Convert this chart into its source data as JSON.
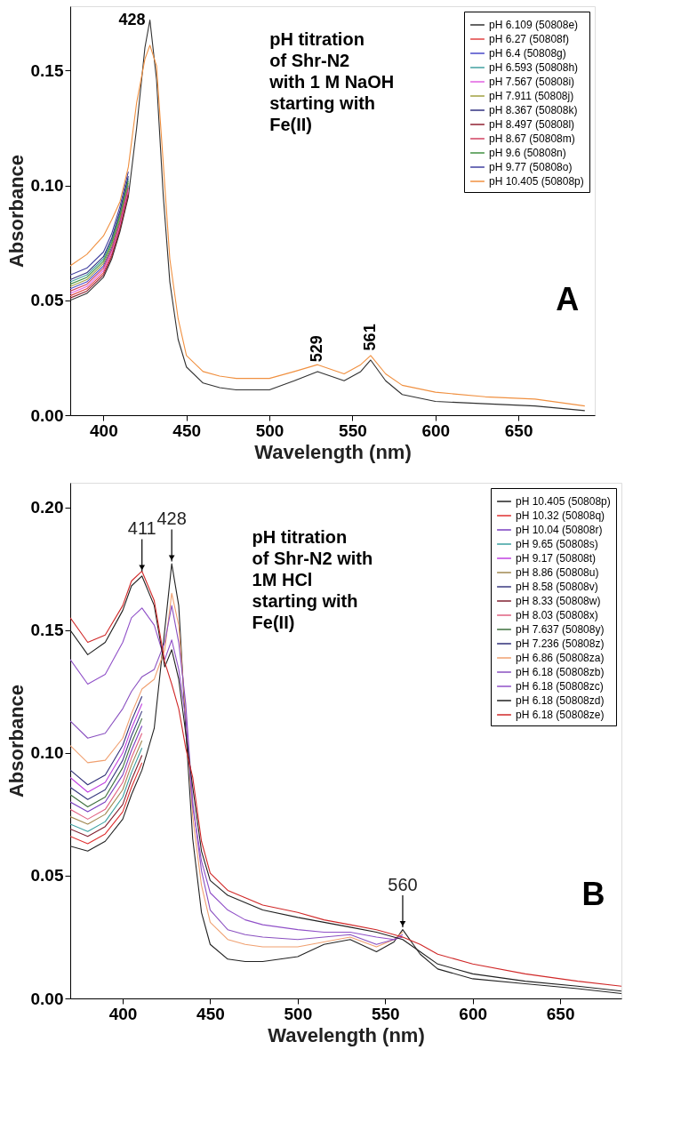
{
  "chart_data": [
    {
      "type": "line",
      "xlabel": "Wavelength (nm)",
      "ylabel": "Absorbance",
      "xlim": [
        380,
        696
      ],
      "ylim": [
        0,
        0.178
      ],
      "xticks": [
        400,
        450,
        500,
        550,
        600,
        650
      ],
      "yticks": [
        {
          "value": 0,
          "label": "0.00"
        },
        {
          "value": 0.05,
          "label": "0.05"
        },
        {
          "value": 0.1,
          "label": "0.10"
        },
        {
          "value": 0.15,
          "label": "0.15"
        }
      ],
      "grid": false,
      "legend": "top right",
      "x": [
        380,
        390,
        400,
        405,
        410,
        415,
        420,
        425,
        428,
        432,
        436,
        440,
        445,
        450,
        460,
        470,
        480,
        500,
        515,
        529,
        545,
        555,
        561,
        570,
        580,
        600,
        630,
        660,
        690
      ],
      "series": [
        {
          "name": "pH 6.109 (50808e)",
          "color": "#303030",
          "values": [
            0.05,
            0.053,
            0.06,
            0.068,
            0.08,
            0.095,
            0.125,
            0.16,
            0.172,
            0.146,
            0.096,
            0.058,
            0.033,
            0.021,
            0.014,
            0.012,
            0.011,
            0.011,
            0.015,
            0.019,
            0.015,
            0.019,
            0.024,
            0.015,
            0.009,
            0.006,
            0.005,
            0.004,
            0.002
          ]
        },
        {
          "name": "pH 6.27 (50808f)",
          "color": "#e04040",
          "values": [
            0.052,
            0.055,
            0.062,
            0.07,
            0.082,
            0.097,
            null,
            null,
            null,
            null,
            null,
            null,
            null,
            null,
            null,
            null,
            null,
            null,
            null,
            null,
            null,
            null,
            null,
            null,
            null,
            null,
            null,
            null,
            null
          ]
        },
        {
          "name": "pH 6.4 (50808g)",
          "color": "#4848c8",
          "values": [
            0.055,
            0.058,
            0.065,
            0.073,
            0.085,
            0.1,
            null,
            null,
            null,
            null,
            null,
            null,
            null,
            null,
            null,
            null,
            null,
            null,
            null,
            null,
            null,
            null,
            null,
            null,
            null,
            null,
            null,
            null,
            null
          ]
        },
        {
          "name": "pH 6.593 (50808h)",
          "color": "#40a0a0",
          "values": [
            0.058,
            0.061,
            0.068,
            0.076,
            0.088,
            0.103,
            null,
            null,
            null,
            null,
            null,
            null,
            null,
            null,
            null,
            null,
            null,
            null,
            null,
            null,
            null,
            null,
            null,
            null,
            null,
            null,
            null,
            null,
            null
          ]
        },
        {
          "name": "pH 7.567 (50808i)",
          "color": "#e060e0",
          "values": [
            0.053,
            0.056,
            0.063,
            0.071,
            0.083,
            0.098,
            null,
            null,
            null,
            null,
            null,
            null,
            null,
            null,
            null,
            null,
            null,
            null,
            null,
            null,
            null,
            null,
            null,
            null,
            null,
            null,
            null,
            null,
            null
          ]
        },
        {
          "name": "pH 7.911 (50808j)",
          "color": "#a0a040",
          "values": [
            0.056,
            0.059,
            0.066,
            0.074,
            0.086,
            0.101,
            null,
            null,
            null,
            null,
            null,
            null,
            null,
            null,
            null,
            null,
            null,
            null,
            null,
            null,
            null,
            null,
            null,
            null,
            null,
            null,
            null,
            null,
            null
          ]
        },
        {
          "name": "pH 8.367 (50808k)",
          "color": "#303080",
          "values": [
            0.059,
            0.062,
            0.069,
            0.077,
            0.089,
            0.104,
            null,
            null,
            null,
            null,
            null,
            null,
            null,
            null,
            null,
            null,
            null,
            null,
            null,
            null,
            null,
            null,
            null,
            null,
            null,
            null,
            null,
            null,
            null
          ]
        },
        {
          "name": "pH 8.497 (50808l)",
          "color": "#902030",
          "values": [
            0.051,
            0.054,
            0.061,
            0.069,
            0.081,
            0.096,
            null,
            null,
            null,
            null,
            null,
            null,
            null,
            null,
            null,
            null,
            null,
            null,
            null,
            null,
            null,
            null,
            null,
            null,
            null,
            null,
            null,
            null,
            null
          ]
        },
        {
          "name": "pH 8.67 (50808m)",
          "color": "#d04060",
          "values": [
            0.054,
            0.057,
            0.064,
            0.072,
            0.084,
            0.099,
            null,
            null,
            null,
            null,
            null,
            null,
            null,
            null,
            null,
            null,
            null,
            null,
            null,
            null,
            null,
            null,
            null,
            null,
            null,
            null,
            null,
            null,
            null
          ]
        },
        {
          "name": "pH 9.6 (50808n)",
          "color": "#409040",
          "values": [
            0.057,
            0.06,
            0.067,
            0.075,
            0.087,
            0.102,
            null,
            null,
            null,
            null,
            null,
            null,
            null,
            null,
            null,
            null,
            null,
            null,
            null,
            null,
            null,
            null,
            null,
            null,
            null,
            null,
            null,
            null,
            null
          ]
        },
        {
          "name": "pH 9.77 (50808o)",
          "color": "#4040a0",
          "values": [
            0.061,
            0.064,
            0.071,
            0.079,
            0.091,
            0.106,
            null,
            null,
            null,
            null,
            null,
            null,
            null,
            null,
            null,
            null,
            null,
            null,
            null,
            null,
            null,
            null,
            null,
            null,
            null,
            null,
            null,
            null,
            null
          ]
        },
        {
          "name": "pH 10.405 (50808p)",
          "color": "#f09040",
          "values": [
            0.065,
            0.07,
            0.078,
            0.085,
            0.093,
            0.108,
            0.136,
            0.155,
            0.161,
            0.152,
            0.11,
            0.068,
            0.042,
            0.026,
            0.019,
            0.017,
            0.016,
            0.016,
            0.019,
            0.022,
            0.018,
            0.022,
            0.026,
            0.018,
            0.013,
            0.01,
            0.008,
            0.007,
            0.004
          ]
        }
      ],
      "annotations": [
        "pH titration\nof Shr-N2\nwith 1 M NaOH\nstarting with\nFe(II)",
        "A",
        {
          "text": "428",
          "x": 428,
          "y": 0.172
        },
        {
          "text": "529",
          "x": 529,
          "y": 0.02
        },
        {
          "text": "561",
          "x": 561,
          "y": 0.025
        }
      ]
    },
    {
      "type": "line",
      "xlabel": "Wavelength (nm)",
      "ylabel": "Absorbance",
      "xlim": [
        370,
        685
      ],
      "ylim": [
        0,
        0.21
      ],
      "xticks": [
        400,
        450,
        500,
        550,
        600,
        650
      ],
      "yticks": [
        {
          "value": 0,
          "label": "0.00"
        },
        {
          "value": 0.05,
          "label": "0.05"
        },
        {
          "value": 0.1,
          "label": "0.10"
        },
        {
          "value": 0.15,
          "label": "0.15"
        },
        {
          "value": 0.2,
          "label": "0.20"
        }
      ],
      "grid": false,
      "legend": "top right",
      "x": [
        370,
        380,
        390,
        400,
        405,
        411,
        418,
        424,
        428,
        432,
        436,
        440,
        445,
        450,
        460,
        470,
        480,
        500,
        515,
        530,
        545,
        555,
        560,
        570,
        580,
        600,
        630,
        660,
        685
      ],
      "series": [
        {
          "name": "pH 10.405 (50808p)",
          "color": "#222222",
          "values": [
            0.062,
            0.06,
            0.064,
            0.073,
            0.083,
            0.093,
            0.11,
            0.15,
            0.177,
            0.16,
            0.11,
            0.065,
            0.035,
            0.022,
            0.016,
            0.015,
            0.015,
            0.017,
            0.022,
            0.024,
            0.019,
            0.023,
            0.028,
            0.018,
            0.012,
            0.008,
            0.006,
            0.004,
            0.002
          ]
        },
        {
          "name": "pH 10.32 (50808q)",
          "color": "#e03030",
          "values": [
            0.066,
            0.063,
            0.067,
            0.076,
            0.086,
            0.096,
            null,
            null,
            null,
            null,
            null,
            null,
            null,
            null,
            null,
            null,
            null,
            null,
            null,
            null,
            null,
            null,
            null,
            null,
            null,
            null,
            null,
            null,
            null
          ]
        },
        {
          "name": "pH 10.04 (50808r)",
          "color": "#7a3fc0",
          "values": [
            0.08,
            0.076,
            0.08,
            0.091,
            0.101,
            0.111,
            null,
            null,
            null,
            null,
            null,
            null,
            null,
            null,
            null,
            null,
            null,
            null,
            null,
            null,
            null,
            null,
            null,
            null,
            null,
            null,
            null,
            null,
            null
          ]
        },
        {
          "name": "pH 9.65 (50808s)",
          "color": "#3aa0a0",
          "values": [
            0.071,
            0.068,
            0.072,
            0.082,
            0.092,
            0.102,
            null,
            null,
            null,
            null,
            null,
            null,
            null,
            null,
            null,
            null,
            null,
            null,
            null,
            null,
            null,
            null,
            null,
            null,
            null,
            null,
            null,
            null,
            null
          ]
        },
        {
          "name": "pH 9.17 (50808t)",
          "color": "#c040e0",
          "values": [
            0.09,
            0.084,
            0.088,
            0.1,
            0.11,
            0.12,
            null,
            null,
            null,
            null,
            null,
            null,
            null,
            null,
            null,
            null,
            null,
            null,
            null,
            null,
            null,
            null,
            null,
            null,
            null,
            null,
            null,
            null,
            null
          ]
        },
        {
          "name": "pH 8.86 (50808u)",
          "color": "#a08850",
          "values": [
            0.074,
            0.071,
            0.075,
            0.085,
            0.095,
            0.105,
            null,
            null,
            null,
            null,
            null,
            null,
            null,
            null,
            null,
            null,
            null,
            null,
            null,
            null,
            null,
            null,
            null,
            null,
            null,
            null,
            null,
            null,
            null
          ]
        },
        {
          "name": "pH 8.58 (50808v)",
          "color": "#3a3a80",
          "values": [
            0.086,
            0.081,
            0.085,
            0.097,
            0.107,
            0.117,
            null,
            null,
            null,
            null,
            null,
            null,
            null,
            null,
            null,
            null,
            null,
            null,
            null,
            null,
            null,
            null,
            null,
            null,
            null,
            null,
            null,
            null,
            null
          ]
        },
        {
          "name": "pH  8.33 (50808w)",
          "color": "#802030",
          "values": [
            0.069,
            0.066,
            0.07,
            0.079,
            0.089,
            0.099,
            null,
            null,
            null,
            null,
            null,
            null,
            null,
            null,
            null,
            null,
            null,
            null,
            null,
            null,
            null,
            null,
            null,
            null,
            null,
            null,
            null,
            null,
            null
          ]
        },
        {
          "name": "pH 8.03 (50808x)",
          "color": "#e06080",
          "values": [
            0.077,
            0.073,
            0.077,
            0.088,
            0.098,
            0.108,
            null,
            null,
            null,
            null,
            null,
            null,
            null,
            null,
            null,
            null,
            null,
            null,
            null,
            null,
            null,
            null,
            null,
            null,
            null,
            null,
            null,
            null,
            null
          ]
        },
        {
          "name": "pH 7.637 (50808y)",
          "color": "#3e703e",
          "values": [
            0.083,
            0.078,
            0.082,
            0.094,
            0.104,
            0.114,
            null,
            null,
            null,
            null,
            null,
            null,
            null,
            null,
            null,
            null,
            null,
            null,
            null,
            null,
            null,
            null,
            null,
            null,
            null,
            null,
            null,
            null,
            null
          ]
        },
        {
          "name": "pH 7.236 (50808z)",
          "color": "#303078",
          "values": [
            0.093,
            0.087,
            0.091,
            0.103,
            0.113,
            0.123,
            null,
            null,
            null,
            null,
            null,
            null,
            null,
            null,
            null,
            null,
            null,
            null,
            null,
            null,
            null,
            null,
            null,
            null,
            null,
            null,
            null,
            null,
            null
          ]
        },
        {
          "name": "pH 6.86 (50808za)",
          "color": "#f0a070",
          "values": [
            0.103,
            0.096,
            0.097,
            0.106,
            0.116,
            0.126,
            0.13,
            0.142,
            0.165,
            0.152,
            0.116,
            0.074,
            0.046,
            0.031,
            0.024,
            0.022,
            0.021,
            0.021,
            0.023,
            0.025,
            0.021,
            0.024,
            0.027,
            null,
            null,
            null,
            null,
            null,
            null
          ]
        },
        {
          "name": "pH 6.18 (50808zb)",
          "color": "#8a50c0",
          "values": [
            0.113,
            0.106,
            0.108,
            0.118,
            0.125,
            0.131,
            0.134,
            0.145,
            0.16,
            0.145,
            0.12,
            0.08,
            0.052,
            0.036,
            0.028,
            0.026,
            0.025,
            0.024,
            0.025,
            0.026,
            0.022,
            0.024,
            0.026,
            null,
            null,
            null,
            null,
            null,
            null
          ]
        },
        {
          "name": "pH 6.18 (50808zc)",
          "color": "#9050c8",
          "values": [
            0.138,
            0.128,
            0.132,
            0.145,
            0.155,
            0.159,
            0.152,
            0.138,
            0.146,
            0.134,
            0.114,
            0.078,
            0.056,
            0.043,
            0.036,
            0.032,
            0.03,
            0.028,
            0.027,
            0.027,
            0.025,
            0.024,
            0.025,
            null,
            null,
            null,
            null,
            null,
            null
          ]
        },
        {
          "name": "pH 6.18 (50808zd)",
          "color": "#202020",
          "values": [
            0.15,
            0.14,
            0.145,
            0.158,
            0.168,
            0.172,
            0.16,
            0.135,
            0.142,
            0.13,
            0.108,
            0.086,
            0.06,
            0.048,
            0.042,
            0.039,
            0.036,
            0.033,
            0.031,
            0.029,
            0.027,
            0.025,
            0.024,
            0.019,
            0.014,
            0.01,
            0.007,
            0.005,
            0.003
          ]
        },
        {
          "name": "pH 6.18 (50808ze)",
          "color": "#d02828",
          "values": [
            0.155,
            0.145,
            0.148,
            0.16,
            0.17,
            0.174,
            0.162,
            0.137,
            0.128,
            0.118,
            0.102,
            0.09,
            0.064,
            0.051,
            0.044,
            0.041,
            0.038,
            0.035,
            0.032,
            0.03,
            0.028,
            0.026,
            0.025,
            0.022,
            0.018,
            0.014,
            0.01,
            0.007,
            0.005
          ]
        }
      ],
      "annotations": [
        "pH titration\nof Shr-N2 with\n1M HCl\nstarting with\nFe(II)",
        "B",
        {
          "text": "411",
          "x": 411,
          "y": 0.174
        },
        {
          "text": "428",
          "x": 428,
          "y": 0.178
        },
        {
          "text": "560",
          "x": 560,
          "y": 0.029
        }
      ]
    }
  ]
}
